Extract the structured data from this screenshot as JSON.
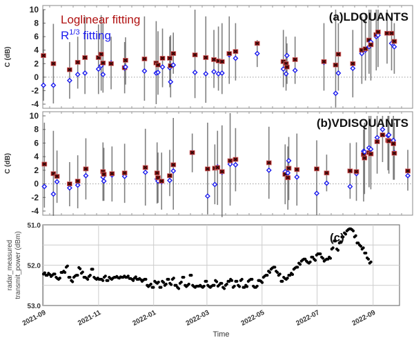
{
  "chart_data": [
    {
      "type": "scatter",
      "panel_label": "(a)LDQUANTS",
      "ylabel": "C (dB)",
      "ylim": [
        -5,
        10.5
      ],
      "yticks": [
        10,
        8,
        6,
        4,
        2,
        0,
        -2,
        -4
      ],
      "x_units": "days since 2021-09-01",
      "legend": [
        {
          "name": "Loglinear fitting",
          "color": "#b01010"
        },
        {
          "name": "R",
          "sup": "1/3",
          "suffix": " fitting",
          "color": "#1a1aee"
        }
      ],
      "days": [
        0,
        11,
        29,
        38,
        46,
        61,
        64,
        66,
        75,
        90,
        91,
        112,
        125,
        127,
        132,
        140,
        141,
        144,
        168,
        180,
        189,
        194,
        198,
        206,
        213,
        237,
        266,
        269,
        270,
        279,
        311,
        324,
        327,
        343,
        353,
        357,
        361,
        363,
        369,
        371,
        381,
        386,
        389
      ],
      "loglinear": [
        3.2,
        2.0,
        1.1,
        2.2,
        2.9,
        2.9,
        3.4,
        2.1,
        2.0,
        1.4,
        2.5,
        2.7,
        2.1,
        1.8,
        2.8,
        2.8,
        1.7,
        3.5,
        3.3,
        2.9,
        2.6,
        2.4,
        2.3,
        3.5,
        3.8,
        5.0,
        2.3,
        2.0,
        1.5,
        2.6,
        2.3,
        1.8,
        3.4,
        2.0,
        4.0,
        4.2,
        5.5,
        4.8,
        6.3,
        6.7,
        6.5,
        6.5,
        5.3
      ],
      "r13": [
        -1.2,
        -1.2,
        -0.5,
        0.4,
        0.6,
        1.2,
        1.7,
        0.4,
        2.1,
        1.3,
        1.5,
        0.9,
        0.6,
        0.7,
        1.5,
        1.4,
        -0.7,
        1.8,
        0.7,
        0.5,
        0.8,
        0.5,
        0.6,
        3.3,
        2.8,
        3.5,
        1.2,
        0.5,
        3.2,
        1.0,
        2.2,
        -2.4,
        0.6,
        1.3,
        3.5,
        4.0,
        4.5,
        5.2,
        6.0,
        6.2,
        6.5,
        5.0,
        4.5
      ],
      "err_low": [
        -3.5,
        -3.9,
        -3.2,
        -1.7,
        -2.5,
        -2.5,
        -2.0,
        -2.3,
        -1.8,
        -2.4,
        -1.1,
        -3.5,
        -4.0,
        -2.6,
        -1.5,
        -1.5,
        -3.0,
        0.5,
        -3.1,
        -3.8,
        -1.6,
        -2.0,
        -2.5,
        -1.0,
        -0.5,
        1.5,
        -1.5,
        -2.0,
        -1.0,
        -1.0,
        -2.0,
        -4.5,
        -2.0,
        -3.0,
        -1.0,
        -0.5,
        0.5,
        -0.5,
        1.0,
        1.5,
        2.0,
        1.0,
        0.5
      ],
      "err_high": [
        10,
        7.9,
        5.2,
        6.0,
        9.0,
        7.8,
        9.2,
        8.0,
        6.0,
        5.2,
        5.9,
        9.0,
        8.3,
        6.8,
        7.2,
        6.0,
        6.2,
        6.6,
        10,
        9.0,
        7.0,
        7.5,
        8.0,
        9.0,
        8.0,
        5.5,
        7.0,
        6.0,
        5.0,
        6.0,
        8.0,
        10,
        8.0,
        7.0,
        9.0,
        9.5,
        10,
        10,
        10,
        10,
        10,
        9.0,
        8.0
      ]
    },
    {
      "type": "scatter",
      "panel_label": "(b)VDISQUANTS",
      "ylabel": "C (dB)",
      "ylim": [
        -5,
        10.5
      ],
      "yticks": [
        10,
        8,
        6,
        4,
        2,
        0,
        -2,
        -4
      ],
      "x_units": "days since 2021-09-01",
      "days": [
        1,
        11,
        15,
        29,
        38,
        47,
        66,
        67,
        76,
        90,
        113,
        126,
        127,
        131,
        140,
        144,
        165,
        182,
        190,
        193,
        198,
        207,
        213,
        250,
        268,
        271,
        272,
        281,
        303,
        314,
        340,
        347,
        355,
        356,
        361,
        363,
        370,
        376,
        382,
        383,
        388,
        389,
        404
      ],
      "loglinear": [
        2.9,
        1.5,
        1.1,
        0.0,
        0.4,
        2.2,
        1.8,
        1.4,
        1.5,
        1.6,
        2.4,
        1.6,
        0.9,
        0.4,
        1.2,
        2.8,
        4.6,
        2.2,
        2.3,
        2.4,
        1.8,
        3.4,
        3.6,
        3.1,
        1.4,
        0.9,
        2.3,
        2.1,
        2.2,
        1.6,
        1.9,
        1.8,
        4.3,
        3.8,
        4.6,
        4.4,
        6.2,
        7.2,
        6.4,
        6.3,
        5.9,
        4.5,
        1.9
      ],
      "r13": [
        -0.4,
        -1.5,
        0.3,
        -0.6,
        -0.2,
        1.2,
        1.0,
        0.4,
        1.3,
        1.1,
        1.7,
        0.7,
        0.4,
        0.3,
        0.5,
        1.9,
        4.6,
        -1.8,
        -0.1,
        2.5,
        1.7,
        2.9,
        2.8,
        2.0,
        1.8,
        1.6,
        3.4,
        1.0,
        -1.4,
        0.1,
        -0.4,
        1.5,
        4.8,
        4.7,
        5.3,
        5.1,
        6.8,
        8.0,
        7.1,
        7.2,
        6.4,
        4.6,
        1.2
      ],
      "err_low": [
        -3.5,
        -4.7,
        -2.8,
        -3.3,
        -3.6,
        -2.3,
        -2.5,
        -2.5,
        -2.6,
        -2.8,
        -3.2,
        -2.9,
        -2.8,
        -3.8,
        -1.8,
        -3.8,
        1.7,
        -4.5,
        -3.0,
        -3.1,
        -5.0,
        -3.2,
        -1.1,
        -2.2,
        -3.0,
        -3.8,
        -2.4,
        -3.2,
        -4.6,
        -1.1,
        -2.2,
        -2.5,
        -2.6,
        -1.5,
        -0.5,
        -0.8,
        1.5,
        3.2,
        2.0,
        1.5,
        0.6,
        0.6,
        -1.0
      ],
      "err_high": [
        9.0,
        7.8,
        4.9,
        3.2,
        4.2,
        6.7,
        6.1,
        5.3,
        5.5,
        5.9,
        8.1,
        6.1,
        4.6,
        4.6,
        5.0,
        9.7,
        7.4,
        9.0,
        5.8,
        7.8,
        8.6,
        10.5,
        8.2,
        8.4,
        5.8,
        5.5,
        6.9,
        7.4,
        6.4,
        4.3,
        6.0,
        6.1,
        8.0,
        9.0,
        10,
        10,
        10,
        10,
        10,
        10,
        10,
        9.0,
        5.0
      ]
    },
    {
      "type": "scatter",
      "panel_label": "(c)",
      "xlabel": "Time",
      "ylabel_lines": [
        "radar_measured",
        "transmit_power (dBm)"
      ],
      "ylim": [
        53.0,
        51.0
      ],
      "y_inverted": true,
      "yticks": [
        "51.0",
        "52.0",
        "53.0"
      ],
      "ygrid": [
        51.5,
        52.5
      ],
      "xlim_days": [
        0,
        395
      ],
      "xticks": [
        {
          "label": "2021-09",
          "day": 0
        },
        {
          "label": "2021-11",
          "day": 61
        },
        {
          "label": "2022-01",
          "day": 122
        },
        {
          "label": "2022-03",
          "day": 181
        },
        {
          "label": "2022-05",
          "day": 242
        },
        {
          "label": "2022-07",
          "day": 303
        },
        {
          "label": "2022-09",
          "day": 365
        }
      ],
      "start_day": 0,
      "step_days": 2.8,
      "values": [
        52.22,
        52.25,
        52.2,
        52.28,
        52.22,
        52.3,
        52.35,
        52.18,
        52.15,
        52.05,
        52.3,
        52.38,
        52.3,
        52.25,
        52.06,
        52.2,
        52.3,
        52.32,
        52.28,
        52.1,
        52.3,
        52.35,
        52.35,
        52.35,
        52.3,
        52.38,
        52.3,
        52.35,
        52.3,
        52.28,
        52.32,
        52.3,
        52.27,
        52.3,
        52.33,
        52.35,
        52.32,
        52.35,
        52.33,
        52.4,
        52.35,
        52.5,
        52.5,
        52.55,
        52.4,
        52.45,
        52.55,
        52.4,
        52.5,
        52.35,
        52.45,
        52.35,
        52.5,
        52.55,
        52.45,
        52.3,
        52.5,
        52.5,
        52.25,
        52.5,
        52.55,
        52.52,
        52.5,
        52.55,
        52.4,
        52.5,
        52.55,
        52.5,
        52.38,
        52.52,
        52.45,
        52.55,
        52.5,
        52.4,
        52.35,
        52.55,
        52.4,
        52.5,
        52.38,
        52.55,
        52.5,
        52.4,
        52.35,
        52.52,
        52.55,
        52.38,
        52.4,
        52.3,
        52.25,
        52.15,
        52.1,
        52.05,
        52.15,
        52.25,
        52.4,
        52.3,
        52.35,
        52.25,
        52.2,
        52.1,
        52.05,
        51.95,
        51.9,
        51.85,
        51.9,
        51.95,
        51.8,
        51.85,
        51.75,
        51.72,
        51.8,
        51.9,
        51.85,
        51.8,
        51.6,
        51.4,
        51.6,
        51.45,
        51.3,
        51.2,
        51.15,
        51.1,
        51.12,
        51.3,
        51.45,
        51.5,
        51.6,
        51.7,
        51.82,
        51.95
      ]
    }
  ]
}
